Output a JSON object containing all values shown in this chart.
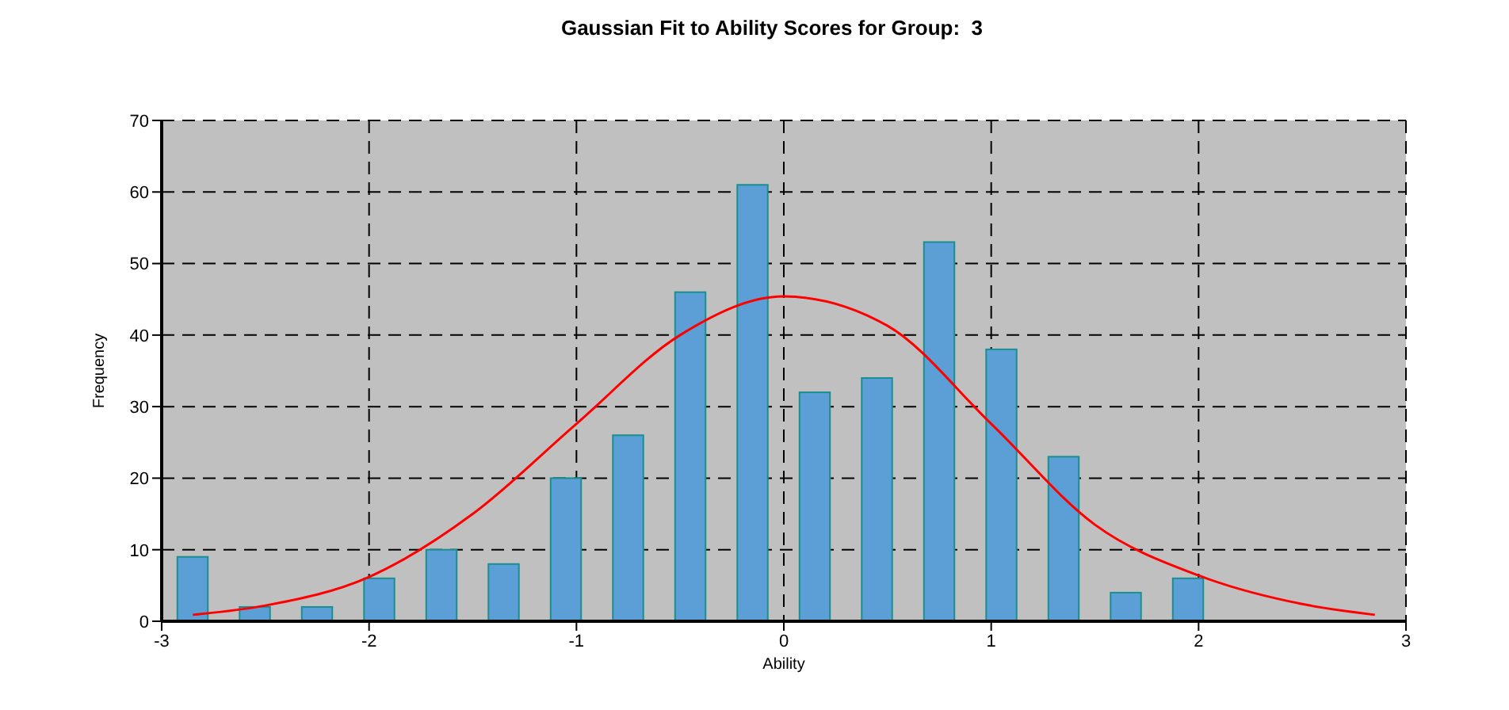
{
  "chart_data": {
    "type": "histogram",
    "title": "Gaussian Fit to Ability Scores for Group:  3",
    "xlabel": "Ability",
    "ylabel": "Frequency",
    "bins": [
      -3,
      -2.7,
      -2.4,
      -2.1,
      -1.8,
      -1.5,
      -1.2,
      -0.9,
      -0.6,
      -0.3,
      0,
      0.3,
      0.6,
      0.9,
      1.2,
      1.5,
      1.8,
      2.1,
      2.4,
      2.7,
      3
    ],
    "values": [
      9,
      2,
      2,
      6,
      10,
      8,
      20,
      26,
      46,
      61,
      32,
      34,
      53,
      38,
      23,
      4,
      6,
      0,
      0,
      0
    ],
    "color": "#5b9fd6",
    "series": [
      {
        "type": "line",
        "color": "#ff0000",
        "x": [
          -2.85,
          -2.5,
          -2,
          -1.5,
          -1,
          -0.5,
          0,
          0.5,
          1,
          1.5,
          2,
          2.5,
          2.85
        ],
        "values": [
          0.9,
          2.2,
          6.2,
          15,
          27.6,
          40,
          45.4,
          41.3,
          27.6,
          13.5,
          6.4,
          2.4,
          0.9
        ]
      }
    ],
    "xlim": [
      -3,
      3
    ],
    "xticks": [
      -3,
      -2,
      -1,
      0,
      1,
      2,
      3
    ],
    "ylim": [
      0,
      70
    ],
    "yticks": [
      0,
      10,
      20,
      30,
      40,
      50,
      60,
      70
    ],
    "grid": true,
    "marker": "none",
    "line_style": "solid"
  }
}
